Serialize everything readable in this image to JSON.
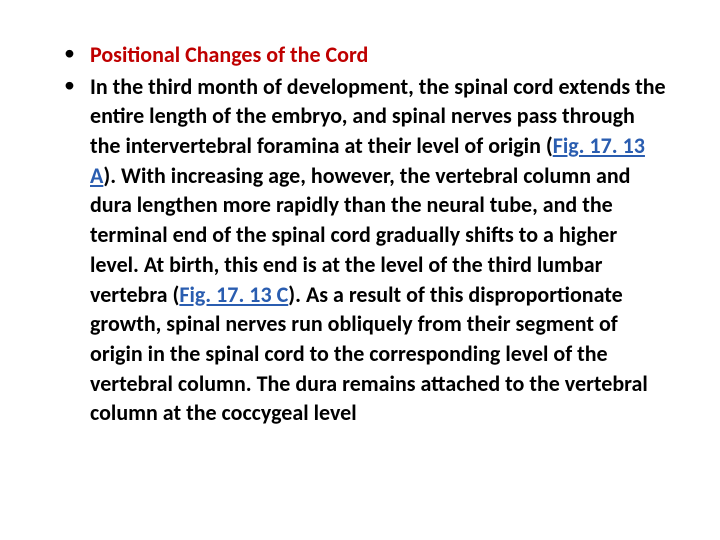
{
  "slide": {
    "heading": "Positional Changes of the Cord",
    "body_parts": {
      "p1": "In the third month of development, the spinal cord extends the entire length of the embryo, and spinal nerves pass through the intervertebral foramina at their level of origin (",
      "fig1": "Fig. 17. 13 A",
      "p2": "). With increasing age, however, the vertebral column and dura lengthen more rapidly than the neural tube, and the terminal end of the spinal cord gradually shifts to a higher level. At birth, this end is at the level of the third lumbar vertebra (",
      "fig2": "Fig. 17. 13 C",
      "p3": "). As a result of this disproportionate growth, spinal nerves run obliquely from their segment of origin in the spinal cord to the corresponding level of the vertebral column. The dura remains attached to the vertebral column at the coccygeal level"
    }
  },
  "colors": {
    "heading": "#bf0000",
    "body": "#000000",
    "link": "#2a5db0",
    "background": "#ffffff"
  },
  "typography": {
    "font_family": "Calibri, Arial, sans-serif",
    "font_size_pt": 16,
    "font_weight": 700,
    "line_height": 1.35,
    "body_align": "justify"
  }
}
